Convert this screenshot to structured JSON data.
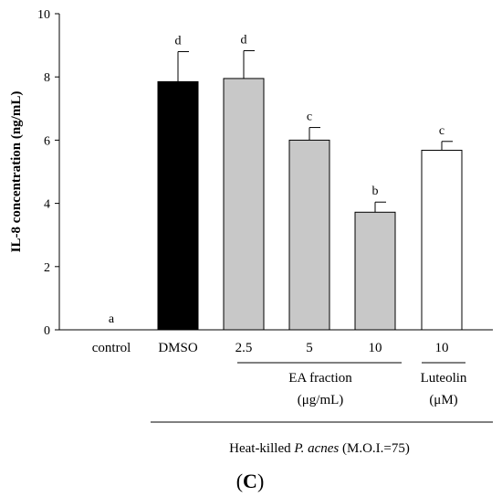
{
  "chart_data": {
    "type": "bar",
    "ylabel": "IL-8 concentration (ng/mL)",
    "ylim": [
      0,
      10
    ],
    "yticks": [
      "0",
      "2",
      "4",
      "6",
      "8",
      "10"
    ],
    "categories": [
      "control",
      "DMSO",
      "2.5",
      "5",
      "10",
      "10"
    ],
    "values": [
      0,
      7.85,
      7.95,
      6.0,
      3.72,
      5.68
    ],
    "errors": [
      0,
      0.95,
      0.88,
      0.4,
      0.32,
      0.28
    ],
    "significance": [
      "a",
      "d",
      "d",
      "c",
      "b",
      "c"
    ],
    "fills": [
      "#ffffff",
      "#000000",
      "#c8c8c8",
      "#c8c8c8",
      "#c8c8c8",
      "#ffffff"
    ],
    "group_labels": {
      "ea_line1": "EA fraction",
      "ea_line2": "(μg/mL)",
      "luteolin_line1": "Luteolin",
      "luteolin_line2": "(μM)"
    },
    "footer": {
      "prefix": "Heat-killed ",
      "italic": "P. acnes",
      "suffix": " (M.O.I.=75)"
    },
    "panel_label_open": "(",
    "panel_label_bold": "C",
    "panel_label_close": ")"
  }
}
